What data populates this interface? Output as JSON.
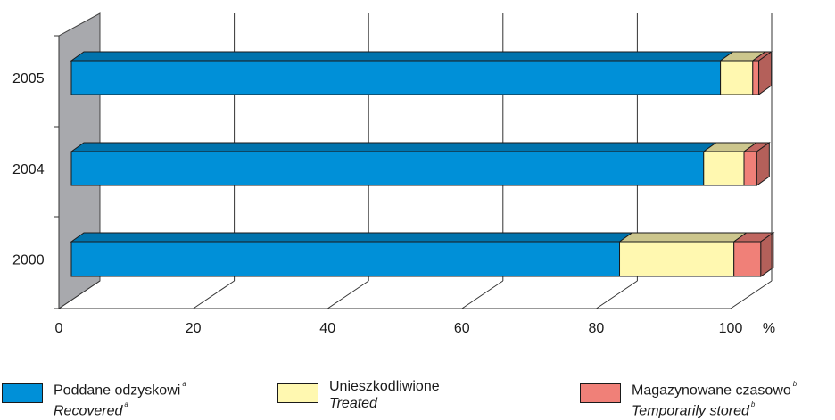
{
  "chart_data": {
    "type": "bar",
    "orientation": "horizontal",
    "stacked": true,
    "percent": true,
    "categories": [
      "2005",
      "2004",
      "2000"
    ],
    "series": [
      {
        "name": "Poddane odzyskowi",
        "name_en": "Recovered",
        "note": "a",
        "color": "#0090d8",
        "values": [
          96.5,
          94.0,
          81.5
        ]
      },
      {
        "name": "Unieszkodliwione",
        "name_en": "Treated",
        "note": "",
        "color": "#fff8b0",
        "values": [
          4.8,
          6.0,
          17.0
        ]
      },
      {
        "name": "Magazynowane czasowo",
        "name_en": "Temporarily stored",
        "note": "b",
        "color": "#f08078",
        "values": [
          0.9,
          1.9,
          4.0
        ]
      }
    ],
    "xticks": [
      0,
      20,
      40,
      60,
      80,
      100
    ],
    "xlim": [
      0,
      100
    ],
    "unit": "%",
    "grid": true,
    "legend_position": "bottom"
  }
}
